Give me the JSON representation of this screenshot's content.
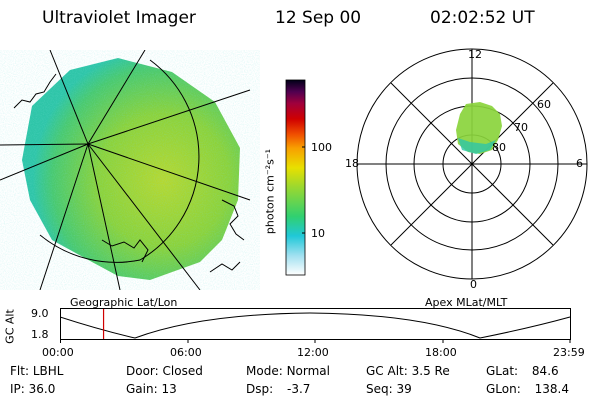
{
  "header": {
    "instrument": "Ultraviolet Imager",
    "date": "12 Sep 00",
    "time": "02:02:52 UT"
  },
  "colorbar": {
    "unit_label": "photon cm⁻²s⁻¹",
    "ticks": [
      "100",
      "10"
    ]
  },
  "polar": {
    "mlt_labels": {
      "top": "12",
      "left": "18",
      "right": "6",
      "bottom": "0"
    },
    "lat_labels": [
      "60",
      "70",
      "80"
    ]
  },
  "geo_map": {
    "caption": "Geographic Lat/Lon"
  },
  "apex": {
    "caption": "Apex MLat/MLT"
  },
  "altitude_plot": {
    "ylabel": "GC Alt",
    "yticks": [
      "9.0",
      "1.8"
    ],
    "xticks": [
      "00:00",
      "06:00",
      "12:00",
      "18:00",
      "23:59"
    ],
    "current_time_hours": 2.05
  },
  "status": {
    "filter": {
      "label": "Flt:",
      "value": "LBHL"
    },
    "ip": {
      "label": "IP:",
      "value": "36.0"
    },
    "door": {
      "label": "Door:",
      "value": "Closed"
    },
    "gain": {
      "label": "Gain:",
      "value": "13"
    },
    "mode": {
      "label": "Mode:",
      "value": "Normal"
    },
    "dsp": {
      "label": "Dsp:",
      "value": "-3.7"
    },
    "gc_alt": {
      "label": "GC Alt:",
      "value": "3.5 Re"
    },
    "seq": {
      "label": "Seq:",
      "value": "39"
    },
    "glat": {
      "label": "GLat:",
      "value": "84.6"
    },
    "glon": {
      "label": "GLon:",
      "value": "138.4"
    }
  }
}
